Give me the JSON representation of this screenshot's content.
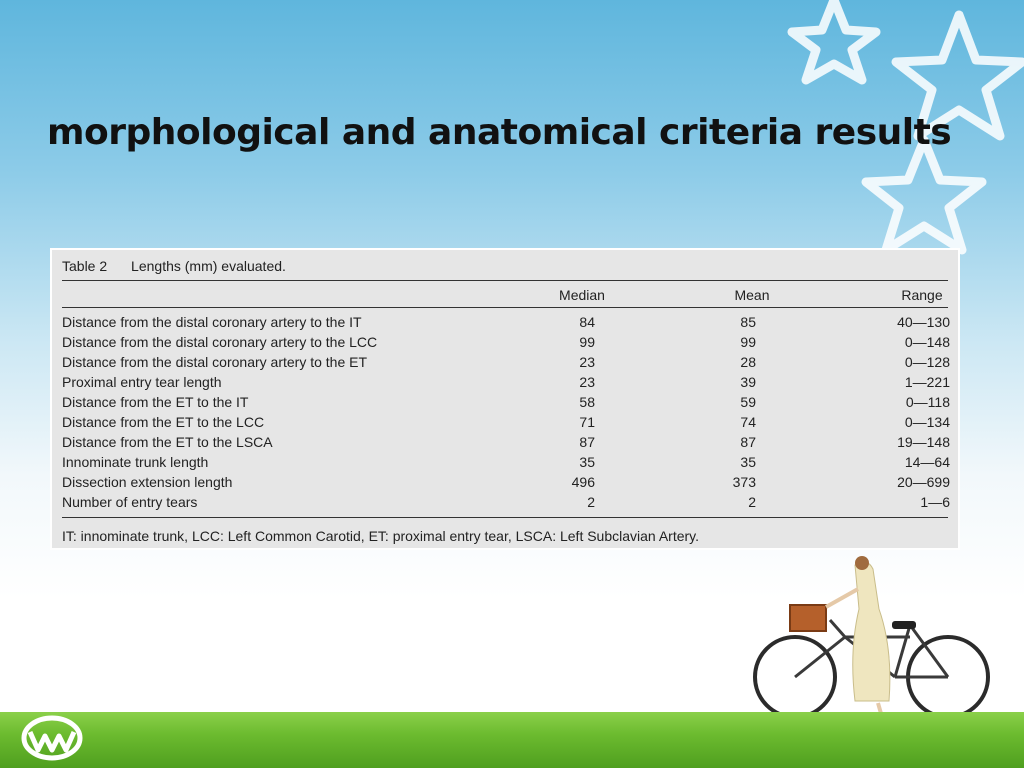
{
  "slide": {
    "title": "morphological and anatomical criteria results"
  },
  "table": {
    "number": "Table 2",
    "caption": "Lengths (mm) evaluated.",
    "headers": {
      "median": "Median",
      "mean": "Mean",
      "range": "Range"
    },
    "rows": [
      {
        "label": "Distance from the distal coronary artery to the IT",
        "median": "84",
        "mean": "85",
        "range": "40—130"
      },
      {
        "label": "Distance from the distal coronary artery to the LCC",
        "median": "99",
        "mean": "99",
        "range": "0—148"
      },
      {
        "label": "Distance from the distal coronary artery to the ET",
        "median": "23",
        "mean": "28",
        "range": "0—128"
      },
      {
        "label": "Proximal entry tear length",
        "median": "23",
        "mean": "39",
        "range": "1—221"
      },
      {
        "label": "Distance from the ET to the IT",
        "median": "58",
        "mean": "59",
        "range": "0—118"
      },
      {
        "label": "Distance from the ET to the LCC",
        "median": "71",
        "mean": "74",
        "range": "0—134"
      },
      {
        "label": "Distance from the ET to the LSCA",
        "median": "87",
        "mean": "87",
        "range": "19—148"
      },
      {
        "label": "Innominate trunk length",
        "median": "35",
        "mean": "35",
        "range": "14—64"
      },
      {
        "label": "Dissection extension length",
        "median": "496",
        "mean": "373",
        "range": "20—699"
      },
      {
        "label": "Number of entry tears",
        "median": "2",
        "mean": "2",
        "range": "1—6"
      }
    ],
    "footnote": "IT: innominate trunk, LCC: Left Common Carotid, ET: proximal entry tear, LSCA: Left Subclavian Artery."
  },
  "decor": {
    "sky_color": "#5fb6dd",
    "grass_color": "#6cbb2f",
    "icons": [
      "star-outline-icon",
      "company-logo-icon",
      "bicycle-girl-illustration"
    ]
  }
}
